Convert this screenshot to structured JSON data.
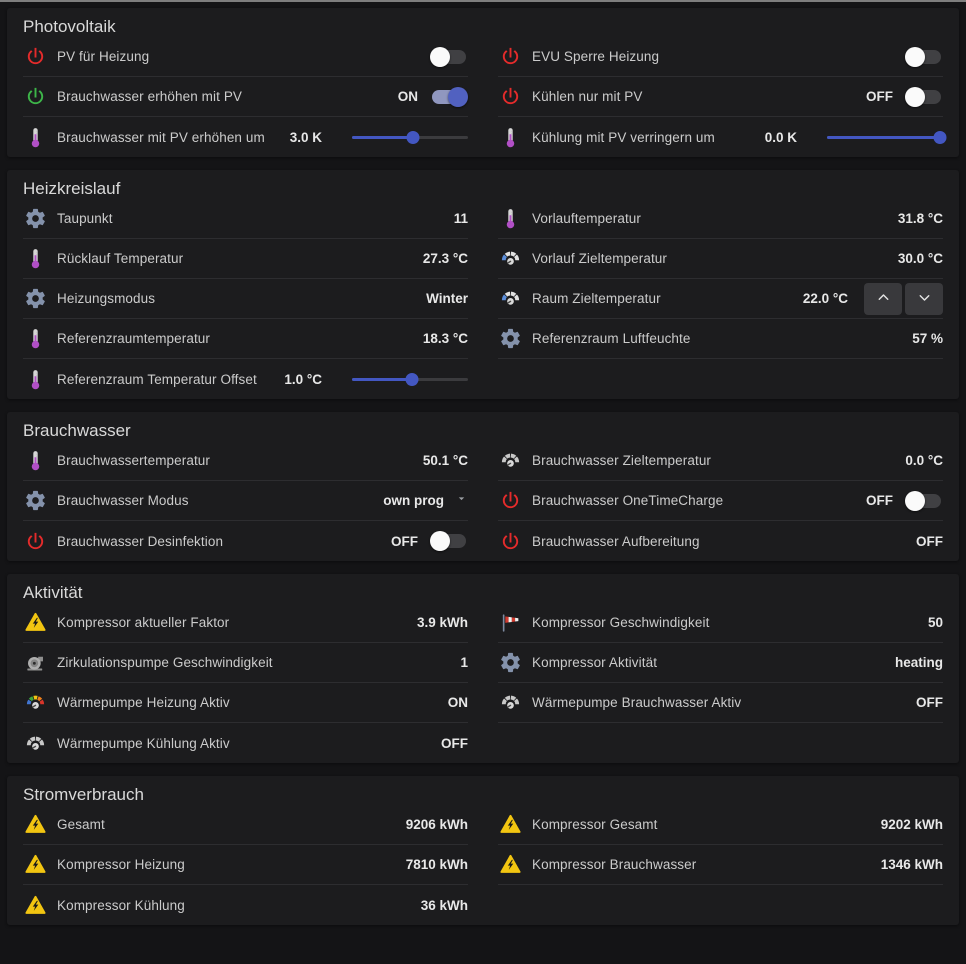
{
  "colors": {
    "power_red": "#e42b2b",
    "power_green": "#3db549",
    "gear": "#8492ab",
    "thermometer": "#b14fc6",
    "warning_yellow": "#f2c511",
    "gauge_blue": "#5b8dd9",
    "toggle_on_knob": "#5161c0",
    "toggle_on_track": "#9097bf",
    "slider": "#4357c2"
  },
  "sections": [
    {
      "title": "Photovoltaik",
      "columns": [
        [
          {
            "icon": "power-red",
            "label": "PV für Heizung",
            "control": {
              "type": "toggle",
              "on": false
            }
          },
          {
            "icon": "power-green",
            "label": "Brauchwasser erhöhen mit PV",
            "control": {
              "type": "toggle",
              "on": true,
              "state_label": "ON"
            }
          },
          {
            "icon": "thermometer",
            "label": "Brauchwasser mit PV erhöhen um",
            "control": {
              "type": "slider",
              "value": "3.0 K",
              "percent": 53
            }
          }
        ],
        [
          {
            "icon": "power-red",
            "label": "EVU Sperre Heizung",
            "control": {
              "type": "toggle",
              "on": false
            }
          },
          {
            "icon": "power-red",
            "label": "Kühlen nur mit PV",
            "control": {
              "type": "toggle",
              "on": false,
              "state_label": "OFF"
            }
          },
          {
            "icon": "thermometer",
            "label": "Kühlung mit PV verringern um",
            "control": {
              "type": "slider",
              "value": "0.0 K",
              "percent": 97
            }
          }
        ]
      ]
    },
    {
      "title": "Heizkreislauf",
      "columns": [
        [
          {
            "icon": "gear",
            "label": "Taupunkt",
            "control": {
              "type": "text",
              "value": "11"
            }
          },
          {
            "icon": "thermometer",
            "label": "Rücklauf Temperatur",
            "control": {
              "type": "text",
              "value": "27.3 °C"
            }
          },
          {
            "icon": "gear",
            "label": "Heizungsmodus",
            "control": {
              "type": "text",
              "value": "Winter"
            }
          },
          {
            "icon": "thermometer",
            "label": "Referenzraumtemperatur",
            "control": {
              "type": "text",
              "value": "18.3 °C"
            }
          },
          {
            "icon": "thermometer",
            "label": "Referenzraum Temperatur Offset",
            "control": {
              "type": "slider",
              "value": "1.0 °C",
              "percent": 52
            }
          }
        ],
        [
          {
            "icon": "thermometer",
            "label": "Vorlauftemperatur",
            "control": {
              "type": "text",
              "value": "31.8 °C"
            }
          },
          {
            "icon": "gauge-blue",
            "label": "Vorlauf Zieltemperatur",
            "control": {
              "type": "text",
              "value": "30.0 °C"
            }
          },
          {
            "icon": "gauge-blue",
            "label": "Raum Zieltemperatur",
            "control": {
              "type": "stepper",
              "value": "22.0 °C"
            }
          },
          {
            "icon": "gear",
            "label": "Referenzraum Luftfeuchte",
            "control": {
              "type": "text",
              "value": "57 %"
            }
          }
        ]
      ]
    },
    {
      "title": "Brauchwasser",
      "columns": [
        [
          {
            "icon": "thermometer",
            "label": "Brauchwassertemperatur",
            "control": {
              "type": "text",
              "value": "50.1 °C"
            }
          },
          {
            "icon": "gear",
            "label": "Brauchwasser Modus",
            "control": {
              "type": "select",
              "value": "own prog"
            }
          },
          {
            "icon": "power-red",
            "label": "Brauchwasser Desinfektion",
            "control": {
              "type": "toggle",
              "on": false,
              "state_label": "OFF"
            }
          }
        ],
        [
          {
            "icon": "gauge-grey",
            "label": "Brauchwasser Zieltemperatur",
            "control": {
              "type": "text",
              "value": "0.0 °C"
            }
          },
          {
            "icon": "power-red",
            "label": "Brauchwasser OneTimeCharge",
            "control": {
              "type": "toggle",
              "on": false,
              "state_label": "OFF"
            }
          },
          {
            "icon": "power-red",
            "label": "Brauchwasser Aufbereitung",
            "control": {
              "type": "text",
              "value": "OFF"
            }
          }
        ]
      ]
    },
    {
      "title": "Aktivität",
      "columns": [
        [
          {
            "icon": "hv-warning",
            "label": "Kompressor aktueller Faktor",
            "control": {
              "type": "text",
              "value": "3.9 kWh"
            }
          },
          {
            "icon": "pump",
            "label": "Zirkulationspumpe Geschwindigkeit",
            "control": {
              "type": "text",
              "value": "1"
            }
          },
          {
            "icon": "gauge-color",
            "label": "Wärmepumpe Heizung Aktiv",
            "control": {
              "type": "text",
              "value": "ON"
            }
          },
          {
            "icon": "gauge-grey",
            "label": "Wärmepumpe Kühlung Aktiv",
            "control": {
              "type": "text",
              "value": "OFF"
            }
          }
        ],
        [
          {
            "icon": "windsock",
            "label": "Kompressor Geschwindigkeit",
            "control": {
              "type": "text",
              "value": "50"
            }
          },
          {
            "icon": "gear",
            "label": "Kompressor Aktivität",
            "control": {
              "type": "text",
              "value": "heating"
            }
          },
          {
            "icon": "gauge-grey",
            "label": "Wärmepumpe Brauchwasser Aktiv",
            "control": {
              "type": "text",
              "value": "OFF"
            }
          }
        ]
      ]
    },
    {
      "title": "Stromverbrauch",
      "columns": [
        [
          {
            "icon": "hv-warning",
            "label": "Gesamt",
            "control": {
              "type": "text",
              "value": "9206 kWh"
            }
          },
          {
            "icon": "hv-warning",
            "label": "Kompressor Heizung",
            "control": {
              "type": "text",
              "value": "7810 kWh"
            }
          },
          {
            "icon": "hv-warning",
            "label": "Kompressor Kühlung",
            "control": {
              "type": "text",
              "value": "36 kWh"
            }
          }
        ],
        [
          {
            "icon": "hv-warning",
            "label": "Kompressor Gesamt",
            "control": {
              "type": "text",
              "value": "9202 kWh"
            }
          },
          {
            "icon": "hv-warning",
            "label": "Kompressor Brauchwasser",
            "control": {
              "type": "text",
              "value": "1346 kWh"
            }
          }
        ]
      ]
    }
  ]
}
